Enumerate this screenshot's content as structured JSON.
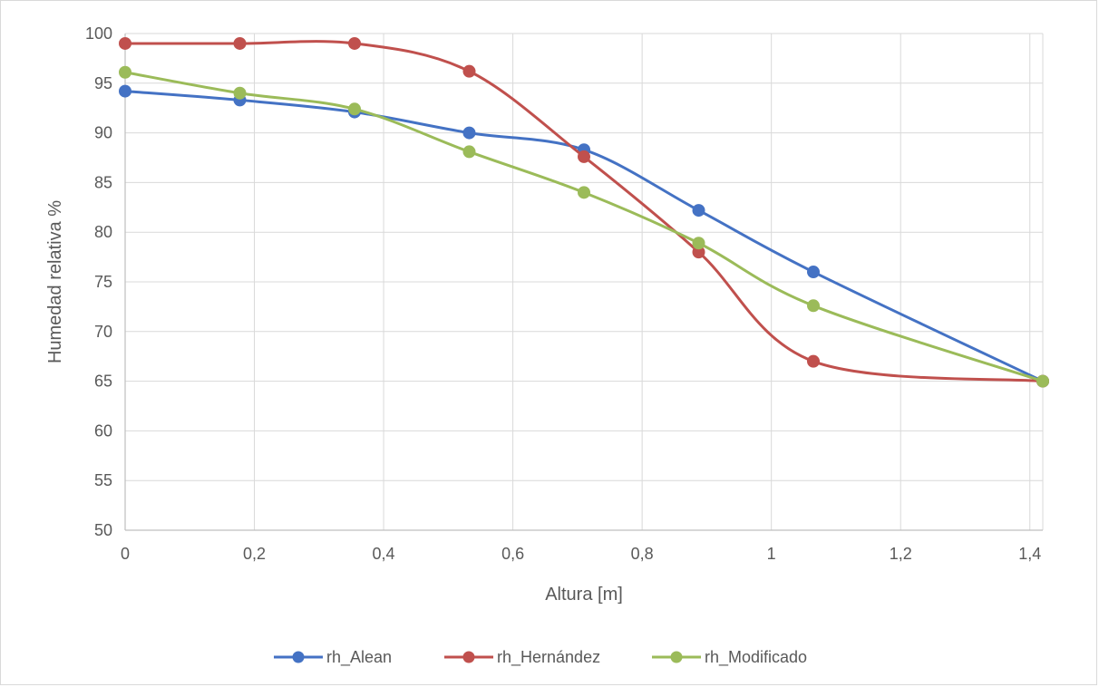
{
  "chart_data": {
    "type": "line",
    "title": "",
    "xlabel": "Altura [m]",
    "ylabel": "Humedad relativa %",
    "xlim": [
      0,
      1.42
    ],
    "ylim": [
      50,
      100
    ],
    "x_ticks": [
      0,
      0.2,
      0.4,
      0.6,
      0.8,
      1,
      1.2,
      1.4
    ],
    "x_tick_labels": [
      "0",
      "0,2",
      "0,4",
      "0,6",
      "0,8",
      "1",
      "1,2",
      "1,4"
    ],
    "y_ticks": [
      50,
      55,
      60,
      65,
      70,
      75,
      80,
      85,
      90,
      95,
      100
    ],
    "y_tick_labels": [
      "50",
      "55",
      "60",
      "65",
      "70",
      "75",
      "80",
      "85",
      "90",
      "95",
      "100"
    ],
    "grid": true,
    "smooth": true,
    "legend_position": "bottom",
    "series": [
      {
        "name": "rh_Alean",
        "color": "#4472c4",
        "points": [
          [
            0,
            94.2
          ],
          [
            0.1775,
            93.3
          ],
          [
            0.355,
            92.1
          ],
          [
            0.5325,
            90.0
          ],
          [
            0.71,
            88.3
          ],
          [
            0.8875,
            82.2
          ],
          [
            1.065,
            76.0
          ],
          [
            1.42,
            65.0
          ]
        ]
      },
      {
        "name": "rh_Hernández",
        "color": "#c0504d",
        "points": [
          [
            0,
            99.0
          ],
          [
            0.1775,
            99.0
          ],
          [
            0.355,
            99.0
          ],
          [
            0.5325,
            96.2
          ],
          [
            0.71,
            87.6
          ],
          [
            0.8875,
            78.0
          ],
          [
            1.065,
            67.0
          ],
          [
            1.42,
            65.0
          ]
        ]
      },
      {
        "name": "rh_Modificado",
        "color": "#9bbb59",
        "points": [
          [
            0,
            96.1
          ],
          [
            0.1775,
            94.0
          ],
          [
            0.355,
            92.4
          ],
          [
            0.5325,
            88.1
          ],
          [
            0.71,
            84.0
          ],
          [
            0.8875,
            78.9
          ],
          [
            1.065,
            72.6
          ],
          [
            1.42,
            65.0
          ]
        ]
      }
    ]
  }
}
